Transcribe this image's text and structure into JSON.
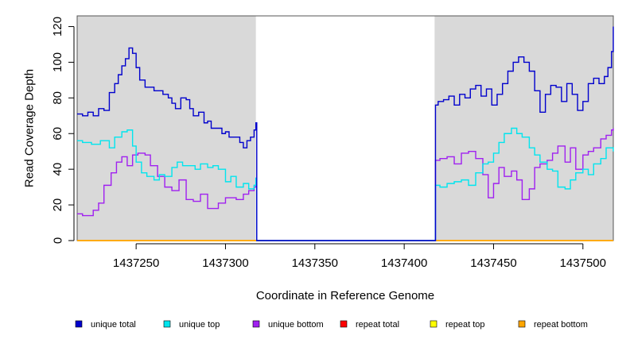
{
  "chart_data": {
    "type": "line",
    "title": "",
    "xlabel": "Coordinate in Reference Genome",
    "ylabel": "Read Coverage Depth",
    "xlim": [
      1437217,
      1437517
    ],
    "ylim": [
      0,
      126
    ],
    "x_ticks": [
      1437250,
      1437300,
      1437350,
      1437400,
      1437450,
      1437500
    ],
    "y_ticks": [
      0,
      20,
      40,
      60,
      80,
      100,
      120
    ],
    "shaded_regions": [
      [
        1437217,
        1437317
      ],
      [
        1437417,
        1437517
      ]
    ],
    "legend_position": "bottom",
    "series": [
      {
        "name": "unique total",
        "color": "#0000cd",
        "x": [
          1437217,
          1437220,
          1437223,
          1437226,
          1437229,
          1437232,
          1437235,
          1437238,
          1437240,
          1437242,
          1437244,
          1437246,
          1437248,
          1437250,
          1437252,
          1437255,
          1437258,
          1437260,
          1437262,
          1437265,
          1437268,
          1437270,
          1437272,
          1437275,
          1437278,
          1437280,
          1437282,
          1437285,
          1437288,
          1437290,
          1437292,
          1437295,
          1437298,
          1437300,
          1437302,
          1437305,
          1437308,
          1437310,
          1437312,
          1437314,
          1437316,
          1437317,
          1437317.5,
          1437417,
          1437417.5,
          1437419,
          1437422,
          1437425,
          1437428,
          1437431,
          1437434,
          1437437,
          1437440,
          1437443,
          1437446,
          1437449,
          1437452,
          1437455,
          1437458,
          1437461,
          1437464,
          1437467,
          1437470,
          1437473,
          1437476,
          1437479,
          1437482,
          1437485,
          1437488,
          1437491,
          1437494,
          1437497,
          1437500,
          1437503,
          1437506,
          1437509,
          1437512,
          1437514,
          1437516,
          1437517
        ],
        "values": [
          71,
          70,
          72,
          70,
          74,
          73,
          83,
          88,
          93,
          98,
          102,
          108,
          105,
          97,
          90,
          86,
          86,
          84,
          84,
          82,
          80,
          77,
          74,
          80,
          79,
          74,
          70,
          72,
          66,
          67,
          63,
          63,
          60,
          61,
          58,
          58,
          55,
          52,
          56,
          58,
          62,
          66,
          0,
          0,
          76,
          78,
          79,
          81,
          76,
          82,
          80,
          85,
          87,
          81,
          85,
          76,
          82,
          88,
          95,
          100,
          103,
          100,
          95,
          84,
          72,
          82,
          87,
          86,
          78,
          88,
          82,
          73,
          78,
          88,
          91,
          88,
          92,
          97,
          106,
          120
        ]
      },
      {
        "name": "unique top",
        "color": "#00e5ee",
        "x": [
          1437217,
          1437220,
          1437225,
          1437230,
          1437235,
          1437238,
          1437242,
          1437245,
          1437248,
          1437250,
          1437253,
          1437256,
          1437260,
          1437263,
          1437266,
          1437270,
          1437273,
          1437276,
          1437280,
          1437283,
          1437286,
          1437290,
          1437293,
          1437296,
          1437300,
          1437303,
          1437306,
          1437310,
          1437313,
          1437316,
          1437317,
          1437317.5,
          1437417,
          1437417.5,
          1437420,
          1437424,
          1437428,
          1437432,
          1437436,
          1437440,
          1437444,
          1437447,
          1437450,
          1437453,
          1437456,
          1437460,
          1437463,
          1437466,
          1437470,
          1437473,
          1437476,
          1437480,
          1437483,
          1437486,
          1437490,
          1437493,
          1437496,
          1437500,
          1437503,
          1437506,
          1437510,
          1437513,
          1437517
        ],
        "values": [
          56,
          55,
          54,
          56,
          52,
          58,
          61,
          62,
          53,
          44,
          38,
          36,
          34,
          37,
          36,
          41,
          44,
          42,
          42,
          40,
          43,
          41,
          42,
          40,
          33,
          36,
          30,
          32,
          29,
          31,
          35,
          0,
          0,
          31,
          30,
          32,
          33,
          34,
          31,
          38,
          43,
          44,
          49,
          55,
          60,
          63,
          60,
          58,
          52,
          48,
          44,
          40,
          39,
          30,
          29,
          34,
          38,
          40,
          37,
          43,
          46,
          52,
          50
        ]
      },
      {
        "name": "unique bottom",
        "color": "#a020f0",
        "x": [
          1437217,
          1437220,
          1437223,
          1437226,
          1437229,
          1437232,
          1437236,
          1437239,
          1437242,
          1437245,
          1437248,
          1437251,
          1437255,
          1437258,
          1437262,
          1437266,
          1437270,
          1437274,
          1437278,
          1437282,
          1437286,
          1437290,
          1437293,
          1437296,
          1437300,
          1437303,
          1437306,
          1437310,
          1437313,
          1437316,
          1437317,
          1437317.5,
          1437417,
          1437417.5,
          1437420,
          1437424,
          1437428,
          1437432,
          1437436,
          1437440,
          1437444,
          1437447,
          1437450,
          1437453,
          1437456,
          1437460,
          1437463,
          1437466,
          1437470,
          1437473,
          1437476,
          1437480,
          1437483,
          1437486,
          1437490,
          1437493,
          1437496,
          1437500,
          1437503,
          1437506,
          1437510,
          1437513,
          1437516,
          1437517
        ],
        "values": [
          15,
          14,
          14,
          17,
          21,
          31,
          38,
          44,
          47,
          42,
          48,
          49,
          48,
          42,
          36,
          30,
          28,
          34,
          23,
          22,
          26,
          18,
          18,
          21,
          24,
          24,
          23,
          26,
          28,
          30,
          35,
          0,
          0,
          45,
          46,
          47,
          43,
          49,
          50,
          46,
          37,
          24,
          32,
          41,
          36,
          39,
          34,
          23,
          29,
          41,
          43,
          45,
          49,
          53,
          44,
          52,
          40,
          48,
          50,
          52,
          57,
          59,
          62,
          63
        ]
      },
      {
        "name": "repeat total",
        "color": "#ff0000",
        "x": [
          1437217,
          1437517
        ],
        "values": [
          0,
          0
        ]
      },
      {
        "name": "repeat top",
        "color": "#ffff00",
        "x": [
          1437217,
          1437517
        ],
        "values": [
          0,
          0
        ]
      },
      {
        "name": "repeat bottom",
        "color": "#ffa500",
        "x": [
          1437217,
          1437517
        ],
        "values": [
          0,
          0
        ]
      }
    ]
  }
}
